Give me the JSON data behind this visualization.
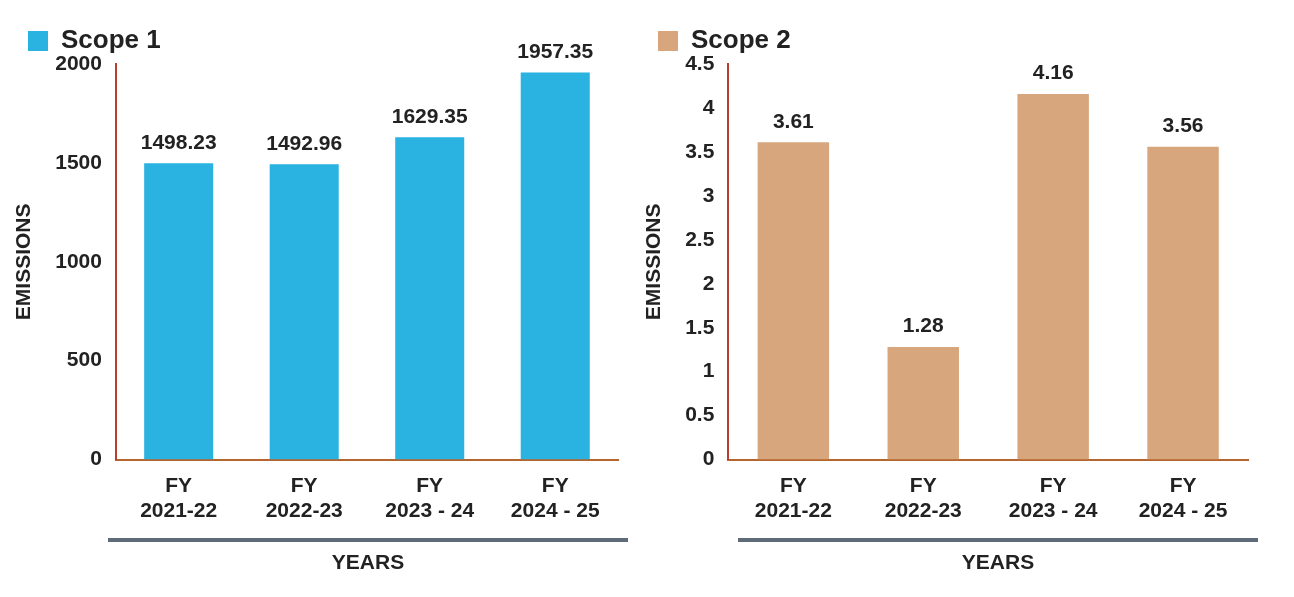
{
  "chart_data": [
    {
      "type": "bar",
      "categories": [
        "FY 2021-22",
        "FY 2022-23",
        "FY 2023 - 24",
        "FY 2024 - 25"
      ],
      "series": [
        {
          "name": "Scope 1",
          "color": "#2ab2e0",
          "values": [
            1498.23,
            1492.96,
            1629.35,
            1957.35
          ]
        }
      ],
      "ylabel": "EMISSIONS",
      "xlabel": "YEARS",
      "ylim": [
        0,
        2000
      ],
      "yticks": [
        0,
        500,
        1000,
        1500,
        2000
      ],
      "data_labels": true,
      "legend": "top left",
      "grid": false
    },
    {
      "type": "bar",
      "categories": [
        "FY 2021-22",
        "FY 2022-23",
        "FY 2023 - 24",
        "FY 2024 - 25"
      ],
      "series": [
        {
          "name": "Scope 2",
          "color": "#d8a67c",
          "values": [
            3.61,
            1.28,
            4.16,
            3.56
          ]
        }
      ],
      "ylabel": "EMISSIONS",
      "xlabel": "YEARS",
      "ylim": [
        0,
        4.5
      ],
      "yticks": [
        0,
        0.5,
        1,
        1.5,
        2,
        2.5,
        3,
        3.5,
        4,
        4.5
      ],
      "data_labels": true,
      "legend": "top left",
      "grid": false
    }
  ]
}
